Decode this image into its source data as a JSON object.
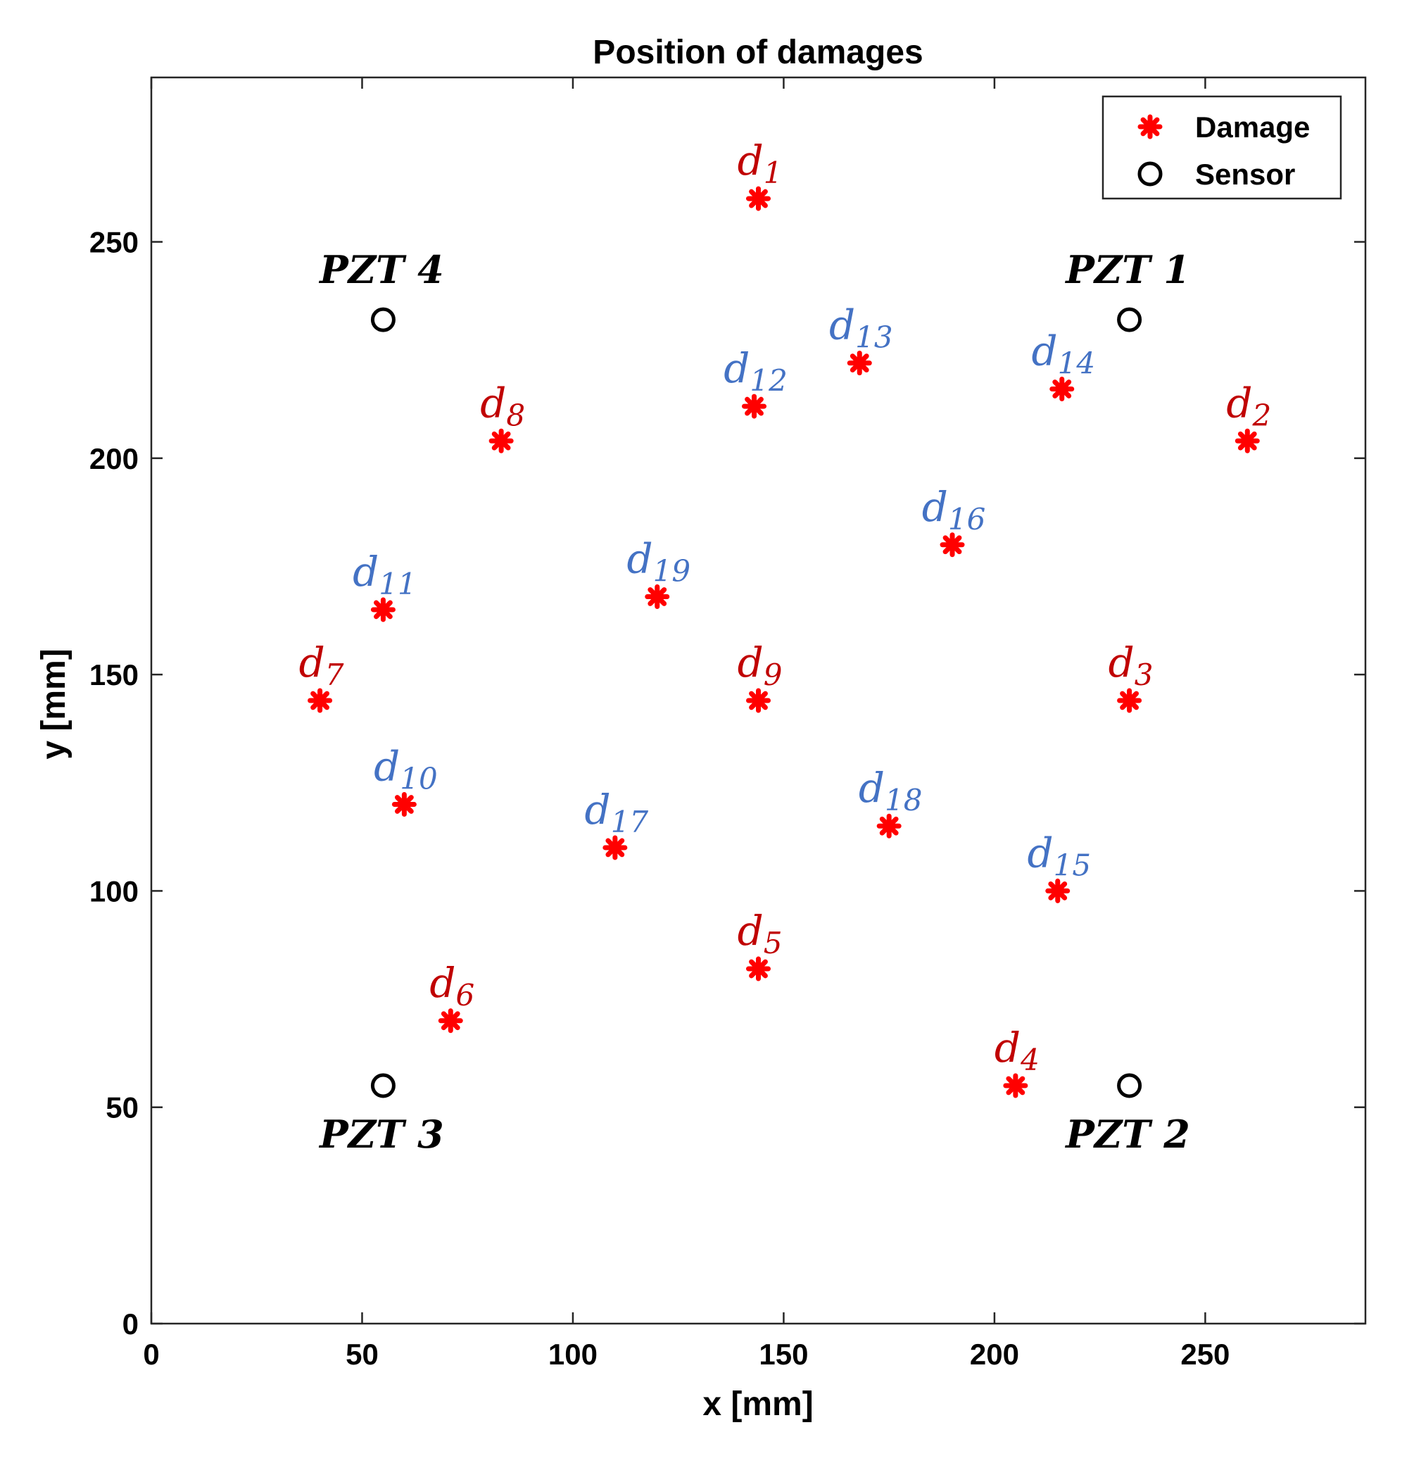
{
  "chart_data": {
    "type": "scatter",
    "title": "Position of damages",
    "xlabel": "x [mm]",
    "ylabel": "y [mm]",
    "xlim": [
      0,
      288
    ],
    "ylim": [
      0,
      288
    ],
    "xticks": [
      0,
      50,
      100,
      150,
      200,
      250
    ],
    "yticks": [
      0,
      50,
      100,
      150,
      200,
      250
    ],
    "grid": false,
    "legend": {
      "location": "top-right",
      "entries": [
        {
          "label": "Damage",
          "marker": "asterisk",
          "color": "#ff0000"
        },
        {
          "label": "Sensor",
          "marker": "circle",
          "color": "#000000"
        }
      ]
    },
    "series": [
      {
        "name": "Damage",
        "marker": "asterisk",
        "color": "#ff0000",
        "points": [
          {
            "id": "d1",
            "base": "d",
            "sub": "1",
            "x": 144,
            "y": 260,
            "label_color": "#c00000"
          },
          {
            "id": "d2",
            "base": "d",
            "sub": "2",
            "x": 260,
            "y": 204,
            "label_color": "#c00000"
          },
          {
            "id": "d3",
            "base": "d",
            "sub": "3",
            "x": 232,
            "y": 144,
            "label_color": "#c00000"
          },
          {
            "id": "d4",
            "base": "d",
            "sub": "4",
            "x": 205,
            "y": 55,
            "label_color": "#c00000"
          },
          {
            "id": "d5",
            "base": "d",
            "sub": "5",
            "x": 144,
            "y": 82,
            "label_color": "#c00000"
          },
          {
            "id": "d6",
            "base": "d",
            "sub": "6",
            "x": 71,
            "y": 70,
            "label_color": "#c00000"
          },
          {
            "id": "d7",
            "base": "d",
            "sub": "7",
            "x": 40,
            "y": 144,
            "label_color": "#c00000"
          },
          {
            "id": "d8",
            "base": "d",
            "sub": "8",
            "x": 83,
            "y": 204,
            "label_color": "#c00000"
          },
          {
            "id": "d9",
            "base": "d",
            "sub": "9",
            "x": 144,
            "y": 144,
            "label_color": "#c00000"
          },
          {
            "id": "d10",
            "base": "d",
            "sub": "10",
            "x": 60,
            "y": 120,
            "label_color": "#4472c4"
          },
          {
            "id": "d11",
            "base": "d",
            "sub": "11",
            "x": 55,
            "y": 165,
            "label_color": "#4472c4"
          },
          {
            "id": "d12",
            "base": "d",
            "sub": "12",
            "x": 143,
            "y": 212,
            "label_color": "#4472c4"
          },
          {
            "id": "d13",
            "base": "d",
            "sub": "13",
            "x": 168,
            "y": 222,
            "label_color": "#4472c4"
          },
          {
            "id": "d14",
            "base": "d",
            "sub": "14",
            "x": 216,
            "y": 216,
            "label_color": "#4472c4"
          },
          {
            "id": "d15",
            "base": "d",
            "sub": "15",
            "x": 215,
            "y": 100,
            "label_color": "#4472c4"
          },
          {
            "id": "d16",
            "base": "d",
            "sub": "16",
            "x": 190,
            "y": 180,
            "label_color": "#4472c4"
          },
          {
            "id": "d17",
            "base": "d",
            "sub": "17",
            "x": 110,
            "y": 110,
            "label_color": "#4472c4"
          },
          {
            "id": "d18",
            "base": "d",
            "sub": "18",
            "x": 175,
            "y": 115,
            "label_color": "#4472c4"
          },
          {
            "id": "d19",
            "base": "d",
            "sub": "19",
            "x": 120,
            "y": 168,
            "label_color": "#4472c4"
          }
        ]
      },
      {
        "name": "Sensor",
        "marker": "circle",
        "color": "#000000",
        "points": [
          {
            "id": "pzt1",
            "base": "PZT",
            "num": "1",
            "x": 232,
            "y": 232,
            "label_side": "above"
          },
          {
            "id": "pzt2",
            "base": "PZT",
            "num": "2",
            "x": 232,
            "y": 55,
            "label_side": "below"
          },
          {
            "id": "pzt3",
            "base": "PZT",
            "num": "3",
            "x": 55,
            "y": 55,
            "label_side": "below"
          },
          {
            "id": "pzt4",
            "base": "PZT",
            "num": "4",
            "x": 55,
            "y": 232,
            "label_side": "above"
          }
        ]
      }
    ]
  }
}
